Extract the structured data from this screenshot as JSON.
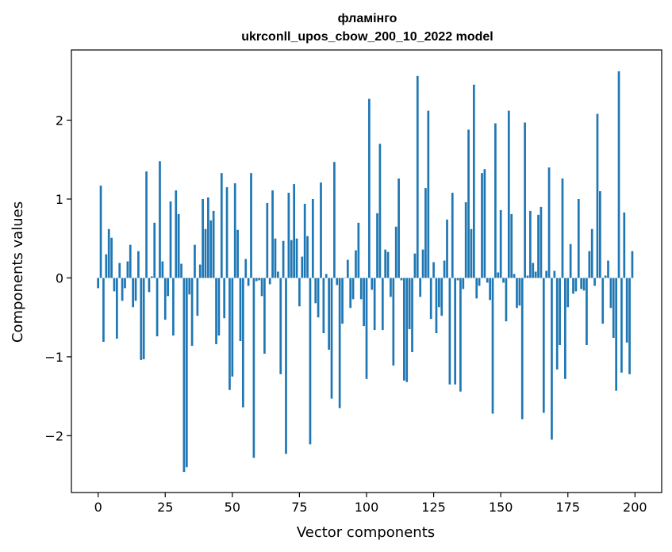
{
  "chart_data": {
    "type": "bar",
    "title": [
      "фламінго",
      "ukrconll_upos_cbow_200_10_2022 model"
    ],
    "xlabel": "Vector components",
    "ylabel": "Components values",
    "xlim": [
      -9.95,
      209.95
    ],
    "ylim": [
      -2.72,
      2.89
    ],
    "xticks": [
      0,
      25,
      50,
      75,
      100,
      125,
      150,
      175,
      200
    ],
    "yticks": [
      -2,
      -1,
      0,
      1,
      2
    ],
    "ytick_labels": [
      "−2",
      "−1",
      "0",
      "1",
      "2"
    ],
    "grid": false,
    "legend": "none",
    "bar_color": "#1f77b4",
    "values": [
      -0.13,
      1.17,
      -0.81,
      0.3,
      0.62,
      0.51,
      -0.17,
      -0.77,
      0.19,
      -0.29,
      -0.13,
      0.21,
      0.42,
      -0.37,
      -0.29,
      0.34,
      -1.04,
      -1.03,
      1.35,
      -0.18,
      0.02,
      0.7,
      -0.74,
      1.48,
      0.21,
      -0.53,
      -0.23,
      0.97,
      -0.73,
      1.11,
      0.81,
      0.18,
      -2.46,
      -2.4,
      -0.21,
      -0.86,
      0.42,
      -0.48,
      0.17,
      1.0,
      0.62,
      1.02,
      0.73,
      0.85,
      -0.84,
      -0.73,
      1.33,
      -0.51,
      1.15,
      -1.42,
      -1.25,
      1.2,
      0.61,
      -0.8,
      -1.64,
      0.24,
      -0.1,
      1.33,
      -2.28,
      -0.04,
      -0.03,
      -0.23,
      -0.96,
      0.95,
      -0.08,
      1.11,
      0.5,
      0.08,
      -1.22,
      0.47,
      -2.23,
      1.08,
      0.48,
      1.19,
      0.5,
      -0.36,
      0.27,
      0.94,
      0.53,
      -2.11,
      1.0,
      -0.32,
      -0.5,
      1.21,
      -0.7,
      0.05,
      -0.91,
      -1.53,
      1.47,
      -0.09,
      -1.65,
      -0.58,
      0.0,
      0.23,
      -0.38,
      -0.27,
      0.35,
      0.7,
      -0.27,
      -0.61,
      -1.28,
      2.27,
      -0.15,
      -0.66,
      0.82,
      1.7,
      -0.66,
      0.36,
      0.33,
      -0.24,
      -1.11,
      0.65,
      1.26,
      -0.03,
      -1.3,
      -1.32,
      -0.65,
      -0.94,
      0.31,
      2.56,
      -0.24,
      0.36,
      1.14,
      2.12,
      -0.52,
      0.2,
      -0.7,
      -0.37,
      -0.48,
      0.22,
      0.74,
      -1.35,
      1.08,
      -1.35,
      -0.03,
      -1.44,
      -0.14,
      0.96,
      1.88,
      0.62,
      2.45,
      -0.26,
      -0.1,
      1.33,
      1.38,
      -0.06,
      -0.28,
      -1.72,
      1.96,
      0.07,
      0.86,
      -0.06,
      -0.55,
      2.12,
      0.81,
      0.05,
      -0.38,
      -0.35,
      -1.79,
      1.97,
      0.03,
      0.85,
      0.19,
      0.08,
      0.8,
      0.9,
      -1.71,
      0.09,
      1.4,
      -2.05,
      0.09,
      -1.16,
      -0.85,
      1.26,
      -1.28,
      -0.37,
      0.43,
      -0.2,
      -0.17,
      1.0,
      -0.14,
      -0.16,
      -0.85,
      0.34,
      0.62,
      -0.1,
      2.08,
      1.1,
      -0.58,
      0.03,
      0.22,
      -0.38,
      -0.76,
      -1.43,
      2.62,
      -1.2,
      0.83,
      -0.82,
      -1.22,
      0.34
    ]
  }
}
